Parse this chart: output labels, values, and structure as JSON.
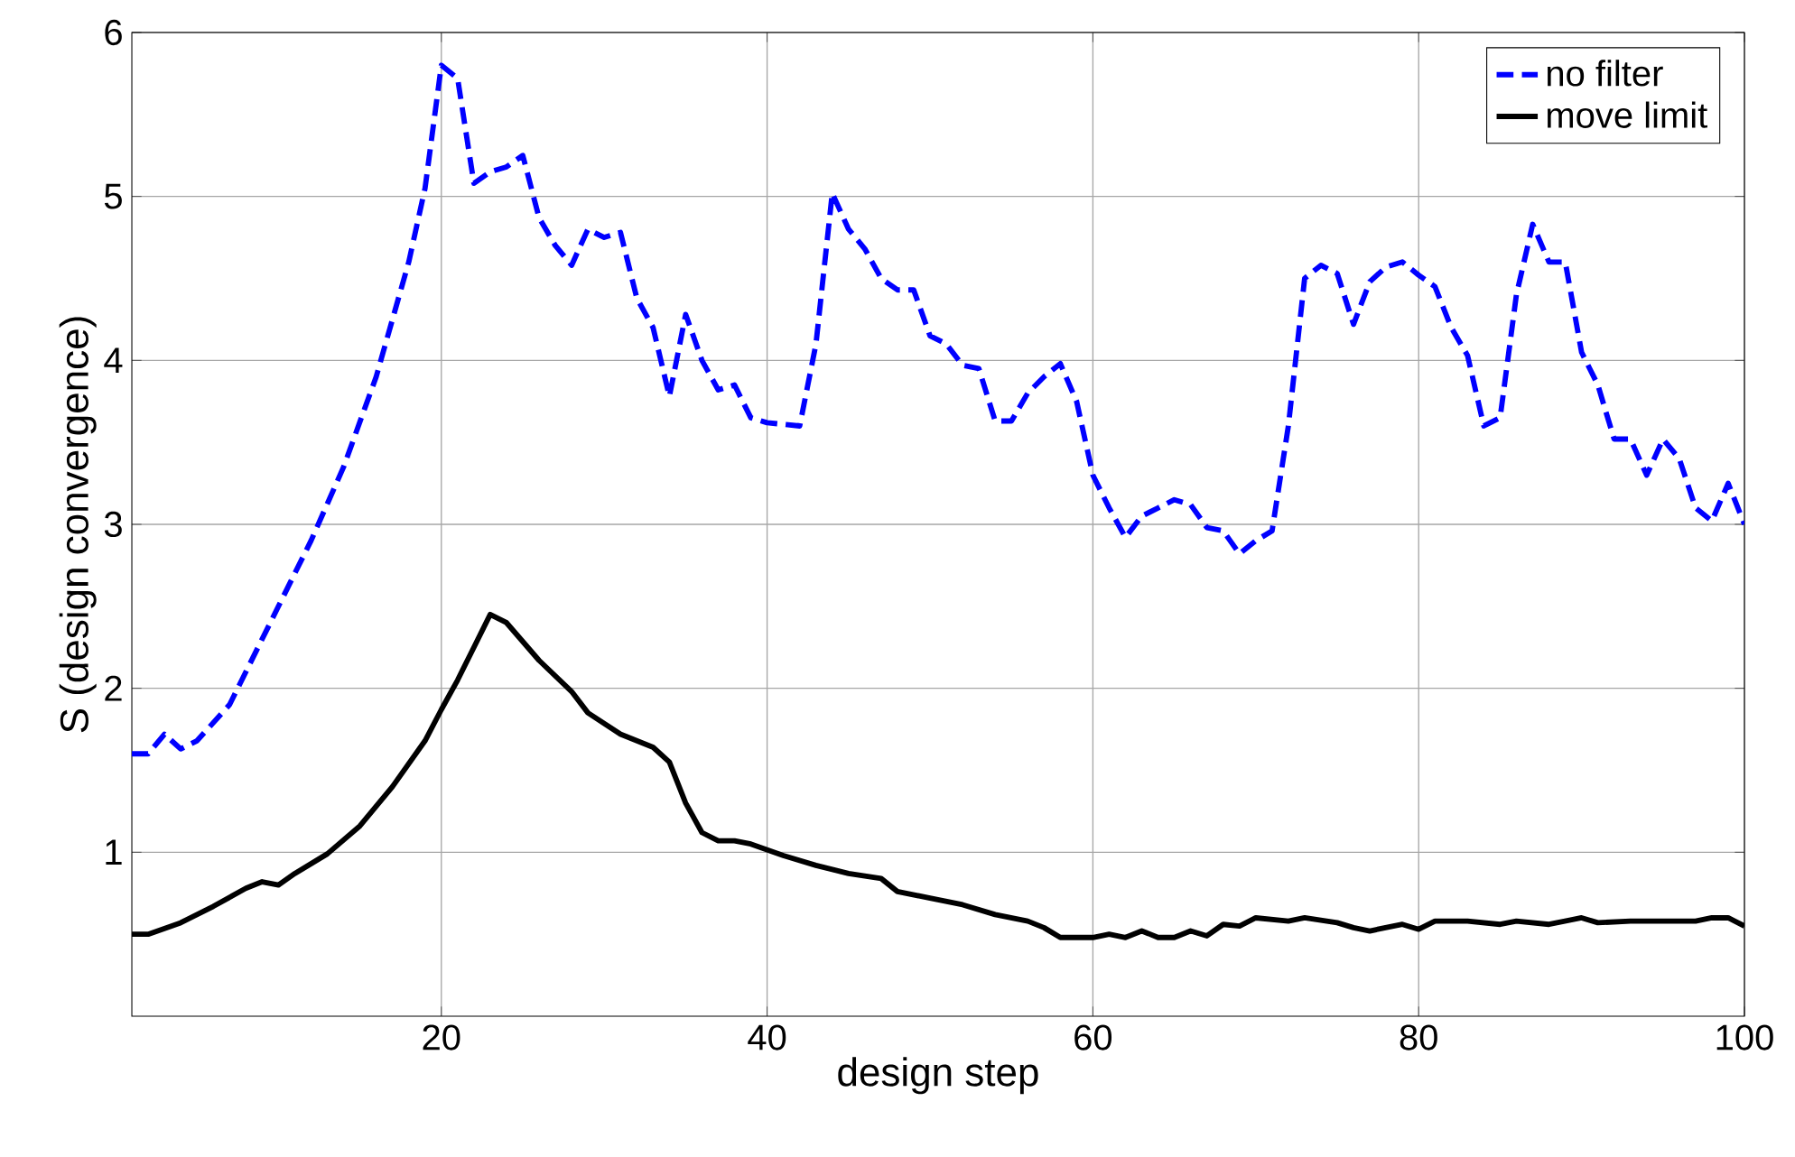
{
  "chart_data": {
    "type": "line",
    "xlabel": "design step",
    "ylabel": "S (design convergence)",
    "xlim": [
      1,
      100
    ],
    "ylim": [
      0,
      6
    ],
    "xticks": [
      20,
      40,
      60,
      80,
      100
    ],
    "yticks": [
      1,
      2,
      3,
      4,
      5,
      6
    ],
    "grid": true,
    "legend": "top right",
    "series": [
      {
        "name": "no filter",
        "color": "#0000ff",
        "line_style": "dashed",
        "x": [
          1,
          2,
          3,
          4,
          5,
          7,
          10,
          12,
          14,
          16,
          18,
          19,
          20,
          21,
          22,
          23,
          24,
          25,
          26,
          27,
          28,
          29,
          30,
          31,
          32,
          33,
          34,
          35,
          36,
          37,
          38,
          39,
          40,
          42,
          43,
          44,
          45,
          46,
          47,
          48,
          49,
          50,
          51,
          52,
          53,
          54,
          55,
          56,
          57,
          58,
          59,
          60,
          61,
          62,
          63,
          64,
          65,
          66,
          67,
          68,
          69,
          70,
          71,
          72,
          73,
          74,
          75,
          76,
          77,
          78,
          79,
          80,
          81,
          82,
          83,
          84,
          85,
          86,
          87,
          88,
          89,
          90,
          91,
          92,
          93,
          94,
          95,
          96,
          97,
          98,
          99,
          100
        ],
        "values": [
          1.6,
          1.6,
          1.72,
          1.63,
          1.68,
          1.9,
          2.5,
          2.9,
          3.35,
          3.9,
          4.6,
          5.05,
          5.8,
          5.72,
          5.08,
          5.15,
          5.18,
          5.25,
          4.87,
          4.7,
          4.58,
          4.8,
          4.75,
          4.78,
          4.38,
          4.2,
          3.78,
          4.28,
          4.0,
          3.82,
          3.85,
          3.65,
          3.62,
          3.6,
          4.1,
          5.02,
          4.8,
          4.68,
          4.5,
          4.43,
          4.43,
          4.15,
          4.1,
          3.97,
          3.95,
          3.63,
          3.63,
          3.8,
          3.9,
          3.98,
          3.75,
          3.3,
          3.1,
          2.92,
          3.05,
          3.1,
          3.15,
          3.12,
          2.98,
          2.96,
          2.82,
          2.9,
          2.96,
          3.6,
          4.5,
          4.58,
          4.53,
          4.22,
          4.48,
          4.57,
          4.6,
          4.52,
          4.45,
          4.2,
          4.03,
          3.6,
          3.65,
          4.4,
          4.83,
          4.6,
          4.6,
          4.05,
          3.85,
          3.52,
          3.52,
          3.3,
          3.52,
          3.4,
          3.1,
          3.02,
          3.25,
          3.0
        ]
      },
      {
        "name": "move limit",
        "color": "#000000",
        "line_style": "solid",
        "x": [
          1,
          2,
          4,
          6,
          8,
          9,
          10,
          11,
          13,
          15,
          17,
          19,
          20,
          21,
          22,
          23,
          24,
          26,
          28,
          29,
          31,
          33,
          34,
          35,
          36,
          37,
          38,
          39,
          41,
          43,
          45,
          47,
          48,
          50,
          52,
          54,
          56,
          57,
          58,
          60,
          61,
          62,
          63,
          64,
          65,
          66,
          67,
          68,
          69,
          70,
          72,
          73,
          75,
          76,
          77,
          79,
          80,
          81,
          83,
          85,
          86,
          88,
          90,
          91,
          93,
          97,
          98,
          99,
          100
        ],
        "values": [
          0.5,
          0.5,
          0.57,
          0.67,
          0.78,
          0.82,
          0.8,
          0.87,
          0.99,
          1.16,
          1.4,
          1.68,
          1.87,
          2.05,
          2.25,
          2.45,
          2.4,
          2.17,
          1.98,
          1.85,
          1.72,
          1.64,
          1.55,
          1.3,
          1.12,
          1.07,
          1.07,
          1.05,
          0.98,
          0.92,
          0.87,
          0.84,
          0.76,
          0.72,
          0.68,
          0.62,
          0.58,
          0.54,
          0.48,
          0.48,
          0.5,
          0.48,
          0.52,
          0.48,
          0.48,
          0.52,
          0.49,
          0.56,
          0.55,
          0.6,
          0.58,
          0.6,
          0.57,
          0.54,
          0.52,
          0.56,
          0.53,
          0.58,
          0.58,
          0.56,
          0.58,
          0.56,
          0.6,
          0.57,
          0.58,
          0.58,
          0.6,
          0.6,
          0.55
        ]
      }
    ]
  }
}
